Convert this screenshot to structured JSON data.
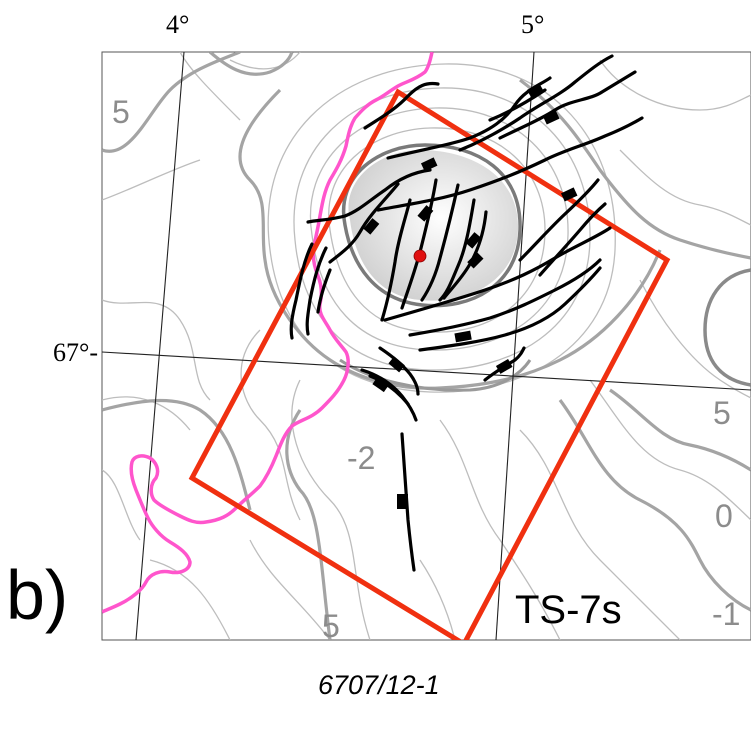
{
  "map": {
    "panel_letter": "b)",
    "survey_label": "TS-7s",
    "well_label": "6707/12-1",
    "longitude_labels": [
      "4°",
      "5°"
    ],
    "latitude_label": "67°-",
    "contour_labels": [
      "5",
      "-2",
      "5",
      "0",
      "-1",
      "5"
    ],
    "colors": {
      "survey_outline": "#f03010",
      "coastline": "#ff55cc",
      "faults": "#000000",
      "contours_major": "#a0a0a0",
      "contours_minor": "#bbbbbb",
      "dome_fill": "#d8d8d8",
      "well_marker": "#e01010"
    }
  }
}
